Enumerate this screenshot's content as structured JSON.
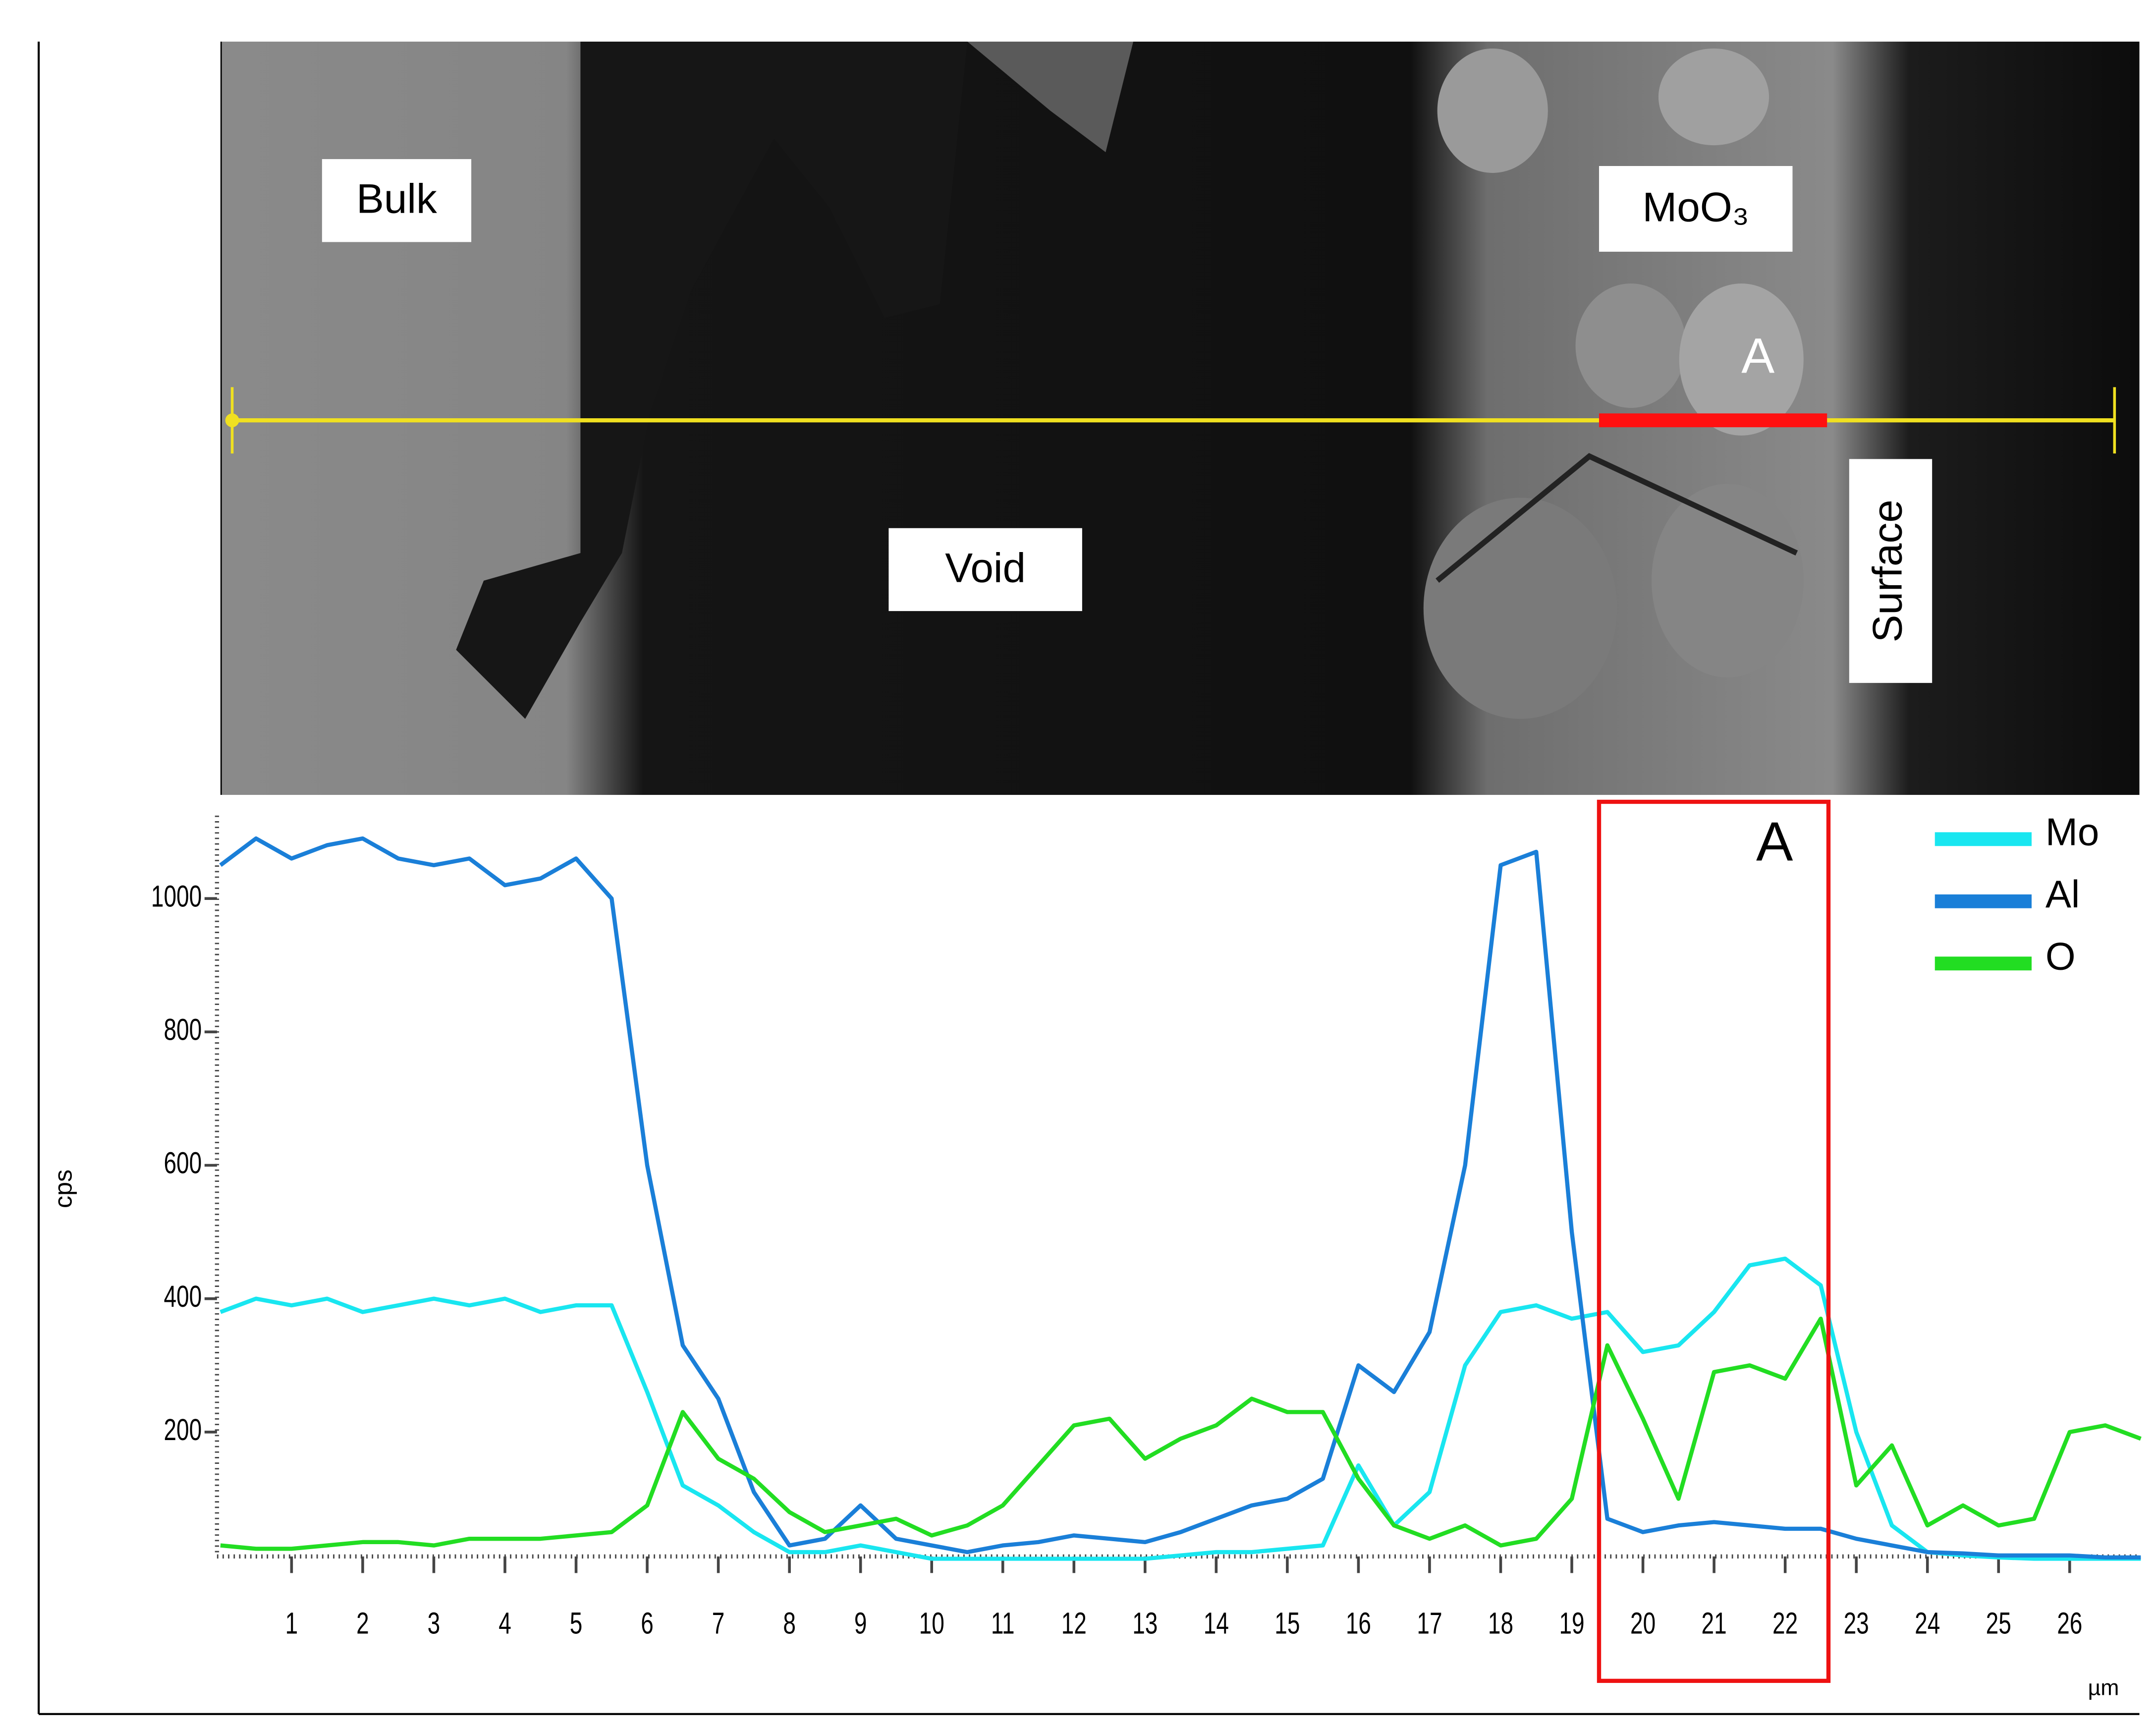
{
  "chart_data": {
    "type": "line",
    "annotations": [
      "Bulk",
      "MoO₃",
      "A",
      "Void",
      "Surface",
      "A"
    ],
    "xlabel": "µm",
    "ylabel": "cps",
    "x": [
      0,
      0.5,
      1,
      1.5,
      2,
      2.5,
      3,
      3.5,
      4,
      4.5,
      5,
      5.5,
      6,
      6.5,
      7,
      7.5,
      8,
      8.5,
      9,
      9.5,
      10,
      10.5,
      11,
      11.5,
      12,
      12.5,
      13,
      13.5,
      14,
      14.5,
      15,
      15.5,
      16,
      16.5,
      17,
      17.5,
      18,
      18.5,
      19,
      19.5,
      20,
      20.5,
      21,
      21.5,
      22,
      22.5,
      23,
      23.5,
      24,
      24.5,
      25,
      25.5,
      26,
      26.5,
      27
    ],
    "series": [
      {
        "name": "Mo",
        "color": "#19e6f0",
        "values": [
          380,
          400,
          390,
          400,
          380,
          390,
          400,
          390,
          400,
          380,
          390,
          390,
          260,
          120,
          90,
          50,
          20,
          20,
          30,
          20,
          10,
          10,
          10,
          10,
          10,
          10,
          10,
          15,
          20,
          20,
          25,
          30,
          150,
          60,
          110,
          300,
          380,
          390,
          370,
          380,
          320,
          330,
          380,
          450,
          460,
          420,
          200,
          60,
          20,
          15,
          12,
          10,
          10,
          10,
          10
        ]
      },
      {
        "name": "Al",
        "color": "#1a7fd8",
        "values": [
          1050,
          1090,
          1060,
          1080,
          1090,
          1060,
          1050,
          1060,
          1020,
          1030,
          1060,
          1000,
          600,
          330,
          250,
          110,
          30,
          40,
          90,
          40,
          30,
          20,
          30,
          35,
          45,
          40,
          35,
          50,
          70,
          90,
          100,
          130,
          300,
          260,
          350,
          600,
          1050,
          1070,
          500,
          70,
          50,
          60,
          65,
          60,
          55,
          55,
          40,
          30,
          20,
          18,
          15,
          15,
          15,
          12,
          12
        ]
      },
      {
        "name": "O",
        "color": "#22dd22",
        "values": [
          30,
          25,
          25,
          30,
          35,
          35,
          30,
          40,
          40,
          40,
          45,
          50,
          90,
          230,
          160,
          130,
          80,
          50,
          60,
          70,
          45,
          60,
          90,
          150,
          210,
          220,
          160,
          190,
          210,
          250,
          230,
          230,
          130,
          60,
          40,
          60,
          30,
          40,
          100,
          330,
          220,
          100,
          290,
          300,
          280,
          370,
          120,
          180,
          60,
          90,
          60,
          70,
          200,
          210,
          190
        ]
      }
    ],
    "xlim": [
      0,
      27
    ],
    "ylim": [
      0,
      1150
    ],
    "xticks": [
      1,
      2,
      3,
      4,
      5,
      6,
      7,
      8,
      9,
      10,
      11,
      12,
      13,
      14,
      15,
      16,
      17,
      18,
      19,
      20,
      21,
      22,
      23,
      24,
      25,
      26
    ],
    "yticks": [
      200,
      400,
      600,
      800,
      1000
    ],
    "legend": "upper right"
  }
}
